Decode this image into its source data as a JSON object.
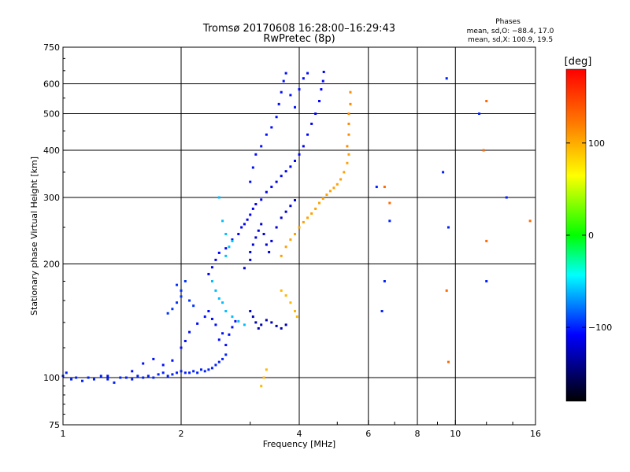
{
  "header": {
    "title_line1": "Tromsø 20170608 16:28:00–16:29:43",
    "title_line2": "RwPretec (8p)"
  },
  "phases": {
    "heading": "Phases",
    "line_o": "mean, sd,O: −88.4, 17.0",
    "line_x": "mean, sd,X: 100.9, 19.5"
  },
  "colorbar": {
    "unit_label": "[deg]",
    "ticks": [
      {
        "value": 100,
        "label": "100"
      },
      {
        "value": 0,
        "label": "0"
      },
      {
        "value": -100,
        "label": "−100"
      }
    ],
    "range": [
      -180,
      180
    ],
    "stops": [
      "#ff0000",
      "#ff8000",
      "#ffff00",
      "#00ff00",
      "#00ffff",
      "#0000ff",
      "#000000"
    ]
  },
  "chart_data": {
    "type": "scatter",
    "xlabel": "Frequency [MHz]",
    "ylabel": "Stationary phase Virtual Height [km]",
    "xscale": "log",
    "yscale": "log",
    "xlim": [
      1,
      16
    ],
    "ylim": [
      75,
      750
    ],
    "x_ticks": [
      {
        "value": 1,
        "label": "1"
      },
      {
        "value": 2,
        "label": "2"
      },
      {
        "value": 4,
        "label": "4"
      },
      {
        "value": 6,
        "label": "6"
      },
      {
        "value": 8,
        "label": "8"
      },
      {
        "value": 10,
        "label": "10"
      },
      {
        "value": 16,
        "label": "16"
      }
    ],
    "y_ticks": [
      {
        "value": 75,
        "label": "75"
      },
      {
        "value": 100,
        "label": "100"
      },
      {
        "value": 200,
        "label": "200"
      },
      {
        "value": 300,
        "label": "300"
      },
      {
        "value": 400,
        "label": "400"
      },
      {
        "value": 500,
        "label": "500"
      },
      {
        "value": 600,
        "label": "600"
      },
      {
        "value": 750,
        "label": "750"
      }
    ],
    "x_gridlines": [
      2,
      4,
      6,
      8,
      10
    ],
    "y_gridlines": [
      100,
      200,
      300,
      400,
      500,
      600
    ],
    "series": [
      {
        "name": "O-mode trace low",
        "phase_deg": -100,
        "points": [
          [
            1.0,
            101
          ],
          [
            1.02,
            103
          ],
          [
            1.05,
            99
          ],
          [
            1.08,
            100
          ],
          [
            1.12,
            98
          ],
          [
            1.16,
            100
          ],
          [
            1.2,
            99
          ],
          [
            1.25,
            101
          ],
          [
            1.3,
            99
          ],
          [
            1.35,
            97
          ],
          [
            1.4,
            100
          ],
          [
            1.45,
            100
          ],
          [
            1.5,
            99
          ],
          [
            1.55,
            101
          ],
          [
            1.6,
            100
          ],
          [
            1.65,
            101
          ],
          [
            1.7,
            100
          ],
          [
            1.75,
            102
          ],
          [
            1.8,
            103
          ],
          [
            1.85,
            101
          ],
          [
            1.9,
            102
          ],
          [
            1.95,
            103
          ],
          [
            2.0,
            104
          ],
          [
            2.05,
            103
          ],
          [
            2.1,
            103
          ],
          [
            2.15,
            104
          ],
          [
            2.2,
            103
          ],
          [
            2.25,
            105
          ],
          [
            2.3,
            104
          ],
          [
            2.35,
            105
          ],
          [
            2.4,
            106
          ],
          [
            2.45,
            108
          ],
          [
            2.5,
            110
          ],
          [
            2.55,
            112
          ],
          [
            2.6,
            115
          ]
        ]
      },
      {
        "name": "O-mode scatter",
        "phase_deg": -105,
        "points": [
          [
            1.3,
            101
          ],
          [
            1.5,
            104
          ],
          [
            1.6,
            109
          ],
          [
            1.7,
            112
          ],
          [
            1.8,
            108
          ],
          [
            1.9,
            111
          ],
          [
            2.0,
            120
          ],
          [
            2.05,
            125
          ],
          [
            2.1,
            132
          ],
          [
            2.2,
            139
          ],
          [
            2.3,
            145
          ],
          [
            2.35,
            150
          ],
          [
            2.4,
            143
          ],
          [
            2.45,
            138
          ],
          [
            2.5,
            126
          ],
          [
            2.55,
            131
          ],
          [
            2.6,
            122
          ],
          [
            2.65,
            130
          ],
          [
            2.7,
            136
          ],
          [
            2.75,
            141
          ]
        ]
      },
      {
        "name": "O-mode cluster lower",
        "phase_deg": -95,
        "points": [
          [
            1.85,
            148
          ],
          [
            1.9,
            152
          ],
          [
            1.95,
            158
          ],
          [
            2.0,
            164
          ],
          [
            2.0,
            170
          ],
          [
            1.95,
            176
          ],
          [
            2.05,
            180
          ],
          [
            2.1,
            160
          ],
          [
            2.15,
            155
          ]
        ]
      },
      {
        "name": "O-mode rising trace",
        "phase_deg": -110,
        "points": [
          [
            2.35,
            188
          ],
          [
            2.4,
            196
          ],
          [
            2.45,
            205
          ],
          [
            2.5,
            214
          ],
          [
            2.6,
            220
          ],
          [
            2.7,
            232
          ],
          [
            2.8,
            240
          ],
          [
            2.85,
            250
          ],
          [
            2.9,
            255
          ],
          [
            2.95,
            262
          ],
          [
            3.0,
            270
          ],
          [
            3.05,
            280
          ],
          [
            3.1,
            288
          ],
          [
            3.2,
            296
          ],
          [
            3.3,
            310
          ],
          [
            3.4,
            320
          ],
          [
            3.5,
            330
          ],
          [
            3.6,
            342
          ],
          [
            3.7,
            352
          ],
          [
            3.8,
            362
          ],
          [
            3.9,
            375
          ],
          [
            4.0,
            390
          ],
          [
            4.1,
            410
          ],
          [
            4.2,
            440
          ],
          [
            4.3,
            470
          ],
          [
            4.4,
            500
          ],
          [
            4.5,
            540
          ],
          [
            4.55,
            580
          ],
          [
            4.6,
            610
          ],
          [
            4.62,
            645
          ]
        ]
      },
      {
        "name": "O-mode upper branch",
        "phase_deg": -105,
        "points": [
          [
            3.0,
            330
          ],
          [
            3.05,
            360
          ],
          [
            3.1,
            390
          ],
          [
            3.2,
            410
          ],
          [
            3.3,
            440
          ],
          [
            3.4,
            460
          ],
          [
            3.5,
            490
          ],
          [
            3.55,
            530
          ],
          [
            3.6,
            570
          ],
          [
            3.65,
            610
          ],
          [
            3.7,
            640
          ],
          [
            3.8,
            560
          ],
          [
            3.9,
            520
          ],
          [
            4.0,
            580
          ],
          [
            4.1,
            620
          ],
          [
            4.2,
            640
          ]
        ]
      },
      {
        "name": "O-mode middle cluster",
        "phase_deg": -120,
        "points": [
          [
            2.9,
            195
          ],
          [
            3.0,
            205
          ],
          [
            3.0,
            215
          ],
          [
            3.05,
            225
          ],
          [
            3.1,
            235
          ],
          [
            3.15,
            245
          ],
          [
            3.2,
            255
          ],
          [
            3.25,
            240
          ],
          [
            3.3,
            225
          ],
          [
            3.35,
            215
          ],
          [
            3.4,
            230
          ],
          [
            3.5,
            250
          ],
          [
            3.6,
            265
          ],
          [
            3.7,
            275
          ],
          [
            3.8,
            285
          ],
          [
            3.9,
            295
          ]
        ]
      },
      {
        "name": "O-mode cyan edge",
        "phase_deg": -60,
        "points": [
          [
            2.4,
            180
          ],
          [
            2.45,
            170
          ],
          [
            2.5,
            162
          ],
          [
            2.55,
            158
          ],
          [
            2.6,
            150
          ],
          [
            2.7,
            145
          ],
          [
            2.8,
            141
          ],
          [
            2.9,
            138
          ],
          [
            2.6,
            210
          ],
          [
            2.65,
            222
          ],
          [
            2.7,
            230
          ],
          [
            2.6,
            240
          ],
          [
            2.55,
            260
          ],
          [
            2.5,
            300
          ]
        ]
      },
      {
        "name": "O-mode lower dark",
        "phase_deg": -130,
        "points": [
          [
            3.0,
            150
          ],
          [
            3.05,
            145
          ],
          [
            3.1,
            140
          ],
          [
            3.15,
            135
          ],
          [
            3.2,
            138
          ],
          [
            3.3,
            142
          ],
          [
            3.4,
            140
          ],
          [
            3.5,
            137
          ],
          [
            3.6,
            135
          ],
          [
            3.7,
            138
          ]
        ]
      },
      {
        "name": "X-mode trace",
        "phase_deg": 105,
        "points": [
          [
            3.6,
            210
          ],
          [
            3.7,
            222
          ],
          [
            3.8,
            232
          ],
          [
            3.9,
            240
          ],
          [
            4.0,
            250
          ],
          [
            4.1,
            258
          ],
          [
            4.2,
            265
          ],
          [
            4.3,
            272
          ],
          [
            4.4,
            280
          ],
          [
            4.5,
            290
          ],
          [
            4.6,
            298
          ],
          [
            4.7,
            305
          ],
          [
            4.8,
            312
          ],
          [
            4.9,
            318
          ],
          [
            5.0,
            325
          ],
          [
            5.1,
            335
          ],
          [
            5.2,
            350
          ],
          [
            5.3,
            370
          ],
          [
            5.35,
            390
          ]
        ]
      },
      {
        "name": "X-mode upper",
        "phase_deg": 115,
        "points": [
          [
            5.3,
            410
          ],
          [
            5.35,
            440
          ],
          [
            5.35,
            470
          ],
          [
            5.35,
            500
          ],
          [
            5.4,
            530
          ],
          [
            5.4,
            570
          ]
        ]
      },
      {
        "name": "X-mode lower",
        "phase_deg": 95,
        "points": [
          [
            3.2,
            95
          ],
          [
            3.25,
            100
          ],
          [
            3.3,
            105
          ],
          [
            3.6,
            170
          ],
          [
            3.7,
            165
          ],
          [
            3.8,
            158
          ],
          [
            3.9,
            150
          ],
          [
            3.95,
            145
          ]
        ]
      },
      {
        "name": "Sparse echoes",
        "phase_deg": -100,
        "points": [
          [
            6.3,
            320
          ],
          [
            6.5,
            150
          ],
          [
            6.6,
            180
          ],
          [
            6.8,
            260
          ],
          [
            9.3,
            350
          ],
          [
            9.5,
            620
          ],
          [
            9.6,
            250
          ],
          [
            11.5,
            500
          ],
          [
            12.0,
            180
          ],
          [
            13.5,
            300
          ]
        ]
      },
      {
        "name": "Sparse echoes warm",
        "phase_deg": 130,
        "points": [
          [
            6.6,
            320
          ],
          [
            6.8,
            290
          ],
          [
            9.5,
            170
          ],
          [
            9.6,
            110
          ],
          [
            11.8,
            400
          ],
          [
            12.0,
            230
          ],
          [
            12.0,
            540
          ],
          [
            15.5,
            260
          ]
        ]
      }
    ]
  }
}
